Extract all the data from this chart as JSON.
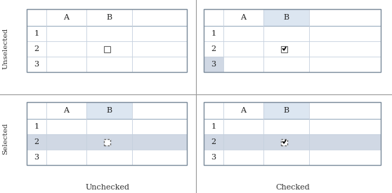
{
  "quadrants": [
    {
      "row": 0,
      "col": 0,
      "highlight_col_b_header": false,
      "highlight_row": null,
      "full_row_highlight": false,
      "checked": false,
      "selected": false
    },
    {
      "row": 0,
      "col": 1,
      "highlight_col_b_header": true,
      "highlight_row": 3,
      "full_row_highlight": false,
      "checked": true,
      "selected": false
    },
    {
      "row": 1,
      "col": 0,
      "highlight_col_b_header": true,
      "highlight_row": 2,
      "full_row_highlight": true,
      "checked": false,
      "selected": true
    },
    {
      "row": 1,
      "col": 1,
      "highlight_col_b_header": true,
      "highlight_row": 2,
      "full_row_highlight": true,
      "checked": true,
      "selected": true
    }
  ],
  "col_labels": [
    "Unchecked",
    "Checked"
  ],
  "row_labels": [
    "Unselected",
    "Selected"
  ],
  "col_header_bg": "#dce6f1",
  "row_highlight_bg": "#d0d8e4",
  "grid_color_header": "#9baec0",
  "grid_color_inner": "#c5d0de",
  "outer_border": "#7a8a9a",
  "checkbox_border_solid": "#666666",
  "checkbox_border_dashed": "#666666",
  "text_color": "#222222",
  "divider_color": "#999999"
}
